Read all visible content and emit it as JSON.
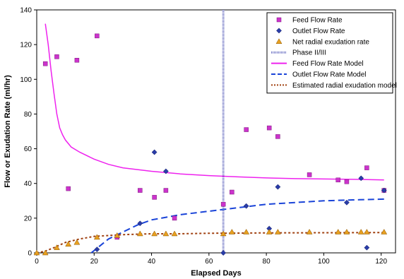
{
  "chart_data": {
    "type": "scatter",
    "title": "",
    "xlabel": "Elapsed Days",
    "ylabel": "Flow or Exudation Rate (ml/hr)",
    "xlim": [
      0,
      125
    ],
    "ylim": [
      0,
      140
    ],
    "x_ticks": [
      0,
      20,
      40,
      60,
      80,
      100,
      120
    ],
    "y_ticks": [
      0,
      20,
      40,
      60,
      80,
      100,
      120,
      140
    ],
    "grid": false,
    "legend_position": "top-right",
    "series": [
      {
        "name": "Feed Flow Rate",
        "kind": "scatter",
        "marker": "square",
        "color": "#cc33cc",
        "points": [
          [
            3,
            109
          ],
          [
            7,
            113
          ],
          [
            11,
            37
          ],
          [
            14,
            111
          ],
          [
            21,
            125
          ],
          [
            28,
            9
          ],
          [
            36,
            36
          ],
          [
            41,
            32
          ],
          [
            45,
            36
          ],
          [
            48,
            20
          ],
          [
            65,
            28
          ],
          [
            68,
            35
          ],
          [
            73,
            71
          ],
          [
            81,
            72
          ],
          [
            84,
            67
          ],
          [
            95,
            45
          ],
          [
            105,
            42
          ],
          [
            108,
            41
          ],
          [
            115,
            49
          ],
          [
            121,
            36
          ]
        ]
      },
      {
        "name": "Outlet Flow Rate",
        "kind": "scatter",
        "marker": "diamond",
        "color": "#2a3ca8",
        "points": [
          [
            21,
            2
          ],
          [
            36,
            17
          ],
          [
            41,
            58
          ],
          [
            45,
            47
          ],
          [
            65,
            0
          ],
          [
            73,
            27
          ],
          [
            81,
            14
          ],
          [
            84,
            38
          ],
          [
            108,
            29
          ],
          [
            113,
            43
          ],
          [
            115,
            3
          ],
          [
            121,
            36
          ]
        ]
      },
      {
        "name": "Net radial exudation rate",
        "kind": "scatter",
        "marker": "triangle",
        "color": "#e8a020",
        "points": [
          [
            0,
            0
          ],
          [
            3,
            0
          ],
          [
            7,
            3
          ],
          [
            11,
            5
          ],
          [
            14,
            6
          ],
          [
            21,
            9
          ],
          [
            28,
            10
          ],
          [
            36,
            11
          ],
          [
            41,
            11
          ],
          [
            45,
            11
          ],
          [
            48,
            11
          ],
          [
            65,
            11
          ],
          [
            68,
            12
          ],
          [
            73,
            12
          ],
          [
            81,
            12
          ],
          [
            84,
            12
          ],
          [
            95,
            12
          ],
          [
            105,
            12
          ],
          [
            108,
            12
          ],
          [
            113,
            12
          ],
          [
            115,
            12
          ],
          [
            121,
            12
          ]
        ]
      },
      {
        "name": "Phase II/III",
        "kind": "vline",
        "color": "#6f74c4",
        "x": 65
      },
      {
        "name": "Feed Flow Rate Model",
        "kind": "line",
        "style": "solid",
        "color": "#ee22ee",
        "points": [
          [
            3,
            132
          ],
          [
            4,
            120
          ],
          [
            5,
            105
          ],
          [
            6,
            92
          ],
          [
            7,
            80
          ],
          [
            8,
            72
          ],
          [
            9,
            68
          ],
          [
            10,
            65
          ],
          [
            12,
            61
          ],
          [
            15,
            58
          ],
          [
            20,
            54
          ],
          [
            25,
            51
          ],
          [
            30,
            49
          ],
          [
            40,
            47
          ],
          [
            50,
            45.5
          ],
          [
            60,
            44.5
          ],
          [
            70,
            43.8
          ],
          [
            80,
            43.2
          ],
          [
            90,
            42.8
          ],
          [
            100,
            42.6
          ],
          [
            110,
            42.4
          ],
          [
            121,
            42
          ]
        ]
      },
      {
        "name": "Outlet Flow Rate Model",
        "kind": "line",
        "style": "dashed",
        "color": "#1a44d8",
        "points": [
          [
            19,
            0
          ],
          [
            22,
            4
          ],
          [
            25,
            8
          ],
          [
            30,
            12
          ],
          [
            35,
            16
          ],
          [
            40,
            19
          ],
          [
            50,
            22
          ],
          [
            60,
            24
          ],
          [
            70,
            26
          ],
          [
            80,
            28
          ],
          [
            90,
            29
          ],
          [
            100,
            30
          ],
          [
            110,
            30.5
          ],
          [
            121,
            31
          ]
        ]
      },
      {
        "name": "Estimated radial exudation model",
        "kind": "line",
        "style": "dotted",
        "color": "#a04010",
        "points": [
          [
            0,
            0
          ],
          [
            3,
            1
          ],
          [
            6,
            3
          ],
          [
            10,
            6
          ],
          [
            15,
            8
          ],
          [
            20,
            9.5
          ],
          [
            25,
            10
          ],
          [
            30,
            10.5
          ],
          [
            40,
            11
          ],
          [
            50,
            11
          ],
          [
            60,
            11.3
          ],
          [
            80,
            11.5
          ],
          [
            100,
            11.6
          ],
          [
            121,
            11.7
          ]
        ]
      }
    ]
  }
}
